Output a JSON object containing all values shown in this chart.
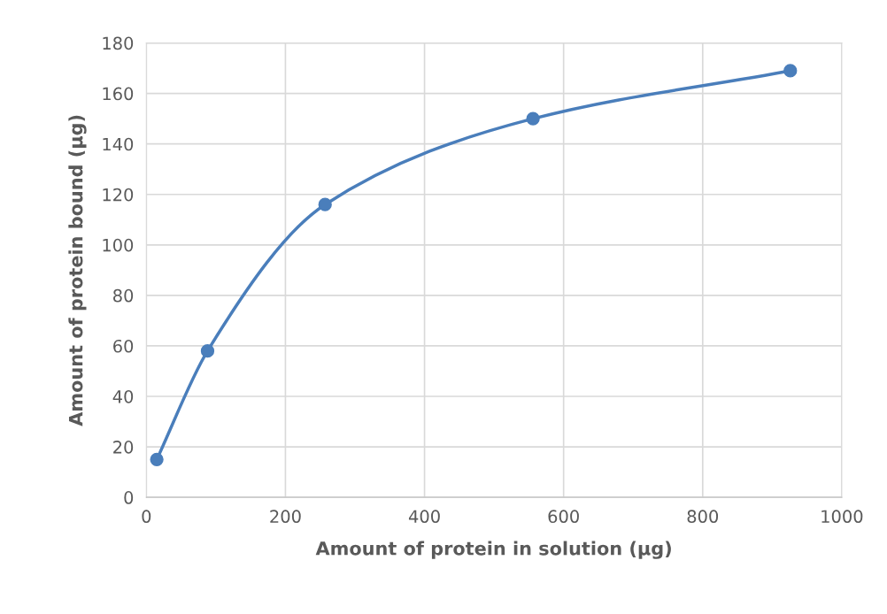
{
  "chart_data": {
    "type": "line",
    "xlabel": "Amount of protein in solution (µg)",
    "ylabel": "Amount of protein bound (µg)",
    "x": [
      15,
      88,
      257,
      556,
      926
    ],
    "series": [
      {
        "color": "#4a7ebb",
        "values": [
          15,
          58,
          116,
          150,
          169
        ]
      }
    ],
    "xlim": [
      0,
      1000
    ],
    "xticks": [
      0,
      200,
      400,
      600,
      800,
      1000
    ],
    "ylim": [
      0,
      180
    ],
    "yticks": [
      0,
      20,
      40,
      60,
      80,
      100,
      120,
      140,
      160,
      180
    ],
    "grid": true,
    "marker": "circle",
    "line_style": "solid",
    "legend": false
  }
}
